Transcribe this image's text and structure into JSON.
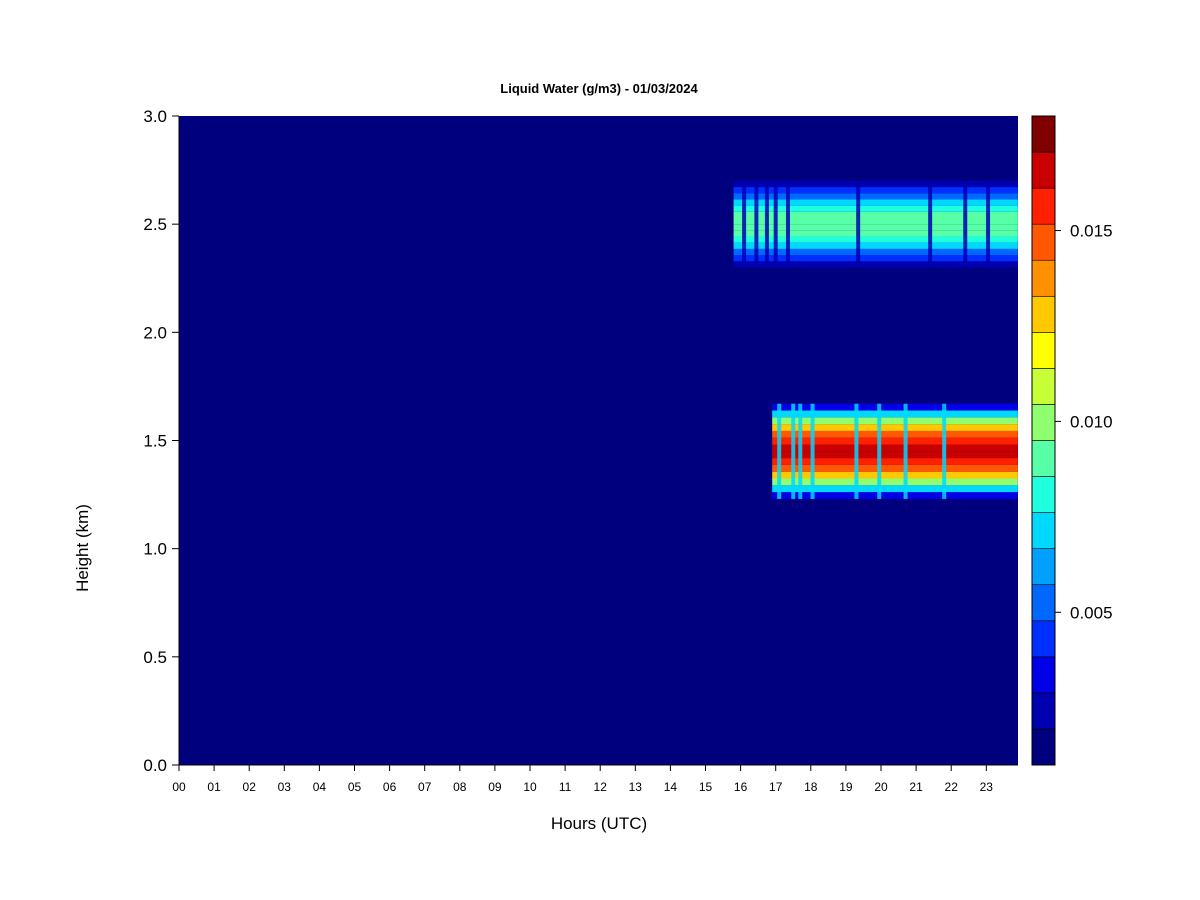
{
  "chart_data": {
    "type": "heatmap",
    "title": "Liquid Water (g/m3) - 01/03/2024",
    "xlabel": "Hours (UTC)",
    "ylabel": "Height (km)",
    "x_ticks": [
      "00",
      "01",
      "02",
      "03",
      "04",
      "05",
      "06",
      "07",
      "08",
      "09",
      "10",
      "11",
      "12",
      "13",
      "14",
      "15",
      "16",
      "17",
      "18",
      "19",
      "20",
      "21",
      "22",
      "23"
    ],
    "y_ticks": [
      "0.0",
      "0.5",
      "1.0",
      "1.5",
      "2.0",
      "2.5",
      "3.0"
    ],
    "xlim": [
      0,
      24
    ],
    "ylim": [
      0.0,
      3.0
    ],
    "colorbar": {
      "range": [
        0.001,
        0.018
      ],
      "tick_values": [
        0.005,
        0.01,
        0.015
      ],
      "tick_labels": [
        "0.005",
        "0.010",
        "0.015"
      ],
      "colors": [
        "#00007f",
        "#0000b0",
        "#0000e8",
        "#0030ff",
        "#0068ff",
        "#00a0ff",
        "#00d8ff",
        "#1fffdf",
        "#57ffa7",
        "#8fff6f",
        "#c7ff37",
        "#ffff00",
        "#ffc800",
        "#ff9000",
        "#ff5800",
        "#ff2000",
        "#c80000",
        "#800000"
      ]
    },
    "background_value": 0.0,
    "layers": [
      {
        "name": "upper cloud layer",
        "center_km": 2.5,
        "half_thickness_km": 0.2,
        "peak_value": 0.009,
        "hour_start": 15.8,
        "hour_end": 23.9,
        "gaps_hours": [
          16.1,
          16.45,
          16.75,
          17.0,
          17.35,
          19.35,
          21.4,
          22.4,
          23.05
        ]
      },
      {
        "name": "lower cloud layer",
        "center_km": 1.45,
        "half_thickness_km": 0.22,
        "peak_value": 0.0165,
        "hour_start": 16.9,
        "hour_end": 23.9,
        "gaps_hours": [
          17.1,
          17.5,
          17.7,
          18.05,
          19.3,
          19.95,
          20.7,
          21.8
        ]
      }
    ],
    "grid": false,
    "legend": "colorbar-right"
  }
}
